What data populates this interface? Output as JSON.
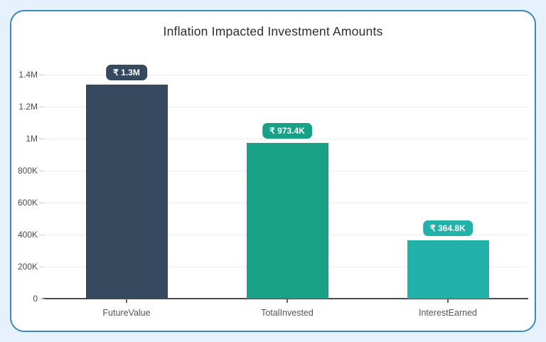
{
  "page": {
    "background_color": "#e6f1fb",
    "card_background": "#ffffff",
    "card_border_color": "#3a87c6"
  },
  "chart_data": {
    "type": "bar",
    "title": "Inflation Impacted Investment Amounts",
    "categories": [
      "FutureValue",
      "TotalInvested",
      "InterestEarned"
    ],
    "values": [
      1338200,
      973400,
      364800
    ],
    "value_labels": [
      "₹ 1.3M",
      "₹ 973.4K",
      "₹ 364.8K"
    ],
    "bar_colors": [
      "#36495e",
      "#18a187",
      "#23b2aa"
    ],
    "y_ticks": [
      {
        "label": "0",
        "value": 0
      },
      {
        "label": "200K",
        "value": 200000
      },
      {
        "label": "400K",
        "value": 400000
      },
      {
        "label": "600K",
        "value": 600000
      },
      {
        "label": "800K",
        "value": 800000
      },
      {
        "label": "1M",
        "value": 1000000
      },
      {
        "label": "1.2M",
        "value": 1200000
      },
      {
        "label": "1.4M",
        "value": 1400000
      }
    ],
    "y_max": 1400000,
    "xlabel": "",
    "ylabel": "",
    "grid": true,
    "legend": "none",
    "currency_symbol": "₹",
    "axis_color": "#4d4d4d",
    "gridline_color": "#ebebf4"
  }
}
